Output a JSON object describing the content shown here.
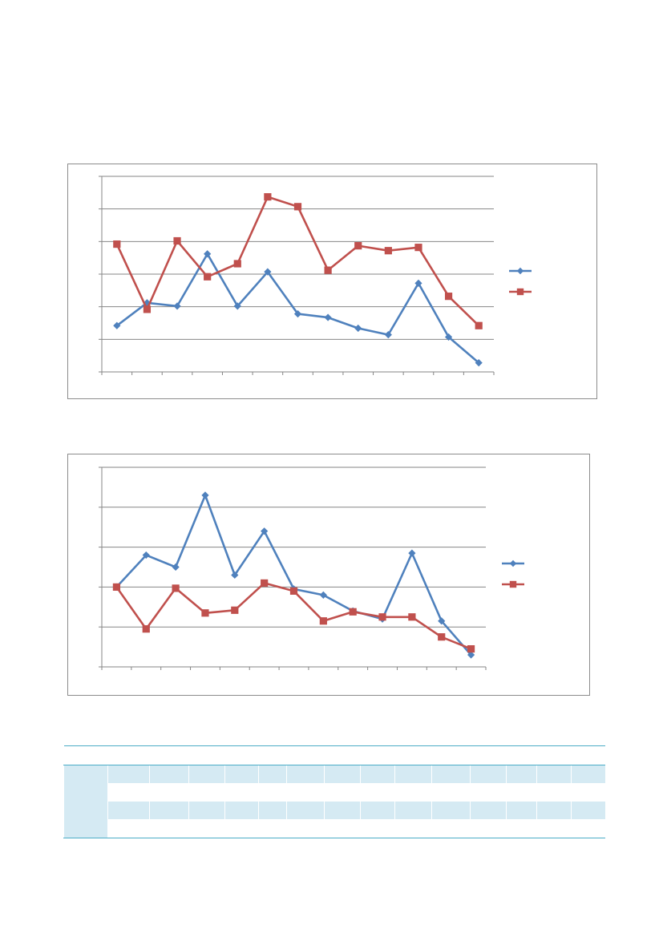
{
  "colors": {
    "series_blue": "#4f81bd",
    "series_red": "#c0504d",
    "gridline": "#868686",
    "frame": "#8c8c8c",
    "table_accent": "#4bacc6",
    "table_shade": "#d5eaf3"
  },
  "chart_data": [
    {
      "type": "line",
      "title": "",
      "xlabel": "",
      "ylabel": "",
      "x": [
        1,
        2,
        3,
        4,
        5,
        6,
        7,
        8,
        9,
        10,
        11,
        12,
        13
      ],
      "ylim": [
        0,
        6
      ],
      "gridlines": true,
      "legend_position": "right",
      "series": [
        {
          "marker": "diamond",
          "values": [
            1.42,
            2.12,
            2.02,
            3.62,
            2.02,
            3.07,
            1.78,
            1.67,
            1.34,
            1.14,
            2.72,
            1.07,
            0.28
          ]
        },
        {
          "marker": "square",
          "values": [
            3.92,
            1.92,
            4.02,
            2.92,
            3.32,
            5.37,
            5.07,
            3.12,
            3.87,
            3.72,
            3.82,
            2.32,
            1.42
          ]
        }
      ]
    },
    {
      "type": "line",
      "title": "",
      "xlabel": "",
      "ylabel": "",
      "x": [
        1,
        2,
        3,
        4,
        5,
        6,
        7,
        8,
        9,
        10,
        11,
        12,
        13
      ],
      "ylim": [
        0,
        5
      ],
      "gridlines": true,
      "legend_position": "right",
      "series": [
        {
          "marker": "diamond",
          "values": [
            2.0,
            2.8,
            2.5,
            4.3,
            2.3,
            3.4,
            1.95,
            1.8,
            1.4,
            1.2,
            2.85,
            1.15,
            0.3
          ]
        },
        {
          "marker": "square",
          "values": [
            2.0,
            0.95,
            1.97,
            1.35,
            1.42,
            2.1,
            1.9,
            1.15,
            1.38,
            1.25,
            1.25,
            0.75,
            0.45
          ]
        }
      ]
    }
  ],
  "table": {
    "rows": [
      [
        "",
        "",
        "",
        "",
        "",
        "",
        "",
        "",
        "",
        "",
        "",
        "",
        "",
        "",
        ""
      ],
      [
        "",
        "",
        "",
        "",
        "",
        "",
        "",
        "",
        "",
        "",
        "",
        "",
        "",
        "",
        ""
      ],
      [
        "",
        "",
        "",
        "",
        "",
        "",
        "",
        "",
        "",
        "",
        "",
        "",
        "",
        "",
        ""
      ],
      [
        "",
        "",
        "",
        "",
        "",
        "",
        "",
        "",
        "",
        "",
        "",
        "",
        "",
        "",
        ""
      ],
      [
        "",
        "",
        "",
        "",
        "",
        "",
        "",
        "",
        "",
        "",
        "",
        "",
        "",
        "",
        ""
      ]
    ]
  }
}
